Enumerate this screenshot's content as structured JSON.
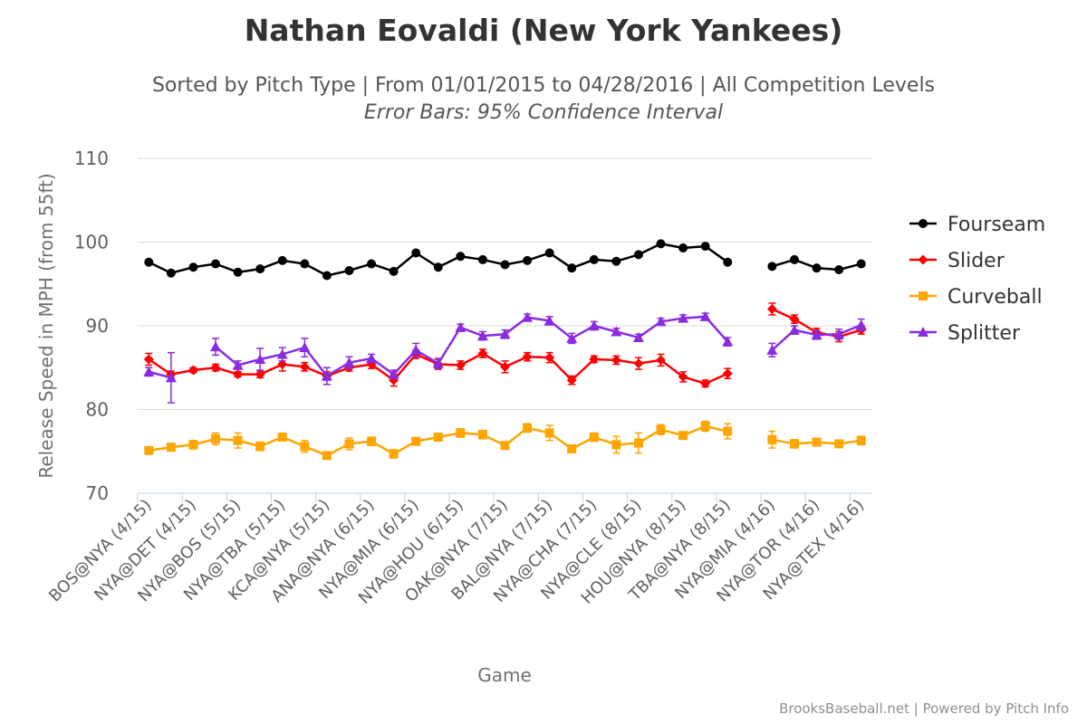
{
  "chart_data": {
    "type": "line",
    "title": "Nathan Eovaldi (New York Yankees)",
    "subtitle": "Sorted by Pitch Type | From 01/01/2015 to 04/28/2016 | All Competition Levels",
    "subtitle2": "Error Bars: 95% Confidence Interval",
    "xlabel": "Game",
    "ylabel": "Release Speed in MPH (from 55ft)",
    "ylim": [
      70,
      110
    ],
    "yticks": [
      70,
      80,
      90,
      100,
      110
    ],
    "grid": true,
    "legend_position": "right",
    "credits": "BrooksBaseball.net | Powered by Pitch Info",
    "x_tick_labels": [
      "BOS@NYA (4/15)",
      "NYA@DET (4/15)",
      "NYA@BOS (5/15)",
      "NYA@TBA (5/15)",
      "KCA@NYA (5/15)",
      "ANA@NYA (6/15)",
      "NYA@MIA (6/15)",
      "NYA@HOU (6/15)",
      "OAK@NYA (7/15)",
      "BAL@NYA (7/15)",
      "NYA@CHA (7/15)",
      "NYA@CLE (8/15)",
      "HOU@NYA (8/15)",
      "TBA@NYA (8/15)",
      "NYA@MIA (4/16)",
      "NYA@TOR (4/16)",
      "NYA@TEX (4/16)"
    ],
    "x_count": 33,
    "series": [
      {
        "name": "Fourseam",
        "color": "#000000",
        "marker": "circle",
        "values": [
          97.6,
          96.3,
          97.0,
          97.4,
          96.4,
          96.8,
          97.8,
          97.4,
          96.0,
          96.6,
          97.4,
          96.5,
          98.7,
          97.0,
          98.3,
          97.9,
          97.3,
          97.8,
          98.7,
          96.9,
          97.9,
          97.7,
          98.5,
          99.8,
          99.3,
          99.5,
          97.6,
          null,
          97.1,
          97.9,
          96.9,
          96.7,
          97.4
        ],
        "errors": []
      },
      {
        "name": "Slider",
        "color": "#ff0000",
        "marker": "diamond",
        "values": [
          86.0,
          84.2,
          84.7,
          85.0,
          84.2,
          84.2,
          85.4,
          85.1,
          84.0,
          85.0,
          85.4,
          83.5,
          86.6,
          85.4,
          85.3,
          86.7,
          85.1,
          86.3,
          86.2,
          83.5,
          86.0,
          85.9,
          85.5,
          85.9,
          83.9,
          83.1,
          84.3,
          null,
          92.0,
          90.8,
          89.2,
          88.7,
          89.5
        ],
        "errors": [
          0.7,
          0.4,
          0.3,
          0.4,
          0.3,
          0.4,
          0.8,
          0.5,
          0.5,
          0.4,
          0.5,
          0.7,
          0.5,
          0.6,
          0.5,
          0.5,
          0.7,
          0.5,
          0.6,
          0.5,
          0.4,
          0.5,
          0.7,
          0.7,
          0.6,
          0.4,
          0.6,
          0,
          0.7,
          0.5,
          0.5,
          0.6,
          0.5
        ]
      },
      {
        "name": "Curveball",
        "color": "#ffa500",
        "marker": "square",
        "values": [
          75.1,
          75.5,
          75.8,
          76.5,
          76.3,
          75.6,
          76.7,
          75.6,
          74.5,
          75.9,
          76.2,
          74.7,
          76.2,
          76.7,
          77.2,
          77.0,
          75.7,
          77.8,
          77.2,
          75.3,
          76.7,
          75.8,
          76.0,
          77.6,
          76.9,
          78.0,
          77.4,
          null,
          76.4,
          75.9,
          76.1,
          75.9,
          76.3
        ],
        "errors": [
          0.4,
          0.4,
          0.5,
          0.7,
          0.9,
          0.5,
          0.4,
          0.7,
          0.4,
          0.7,
          0.5,
          0.5,
          0.4,
          0.3,
          0.5,
          0.5,
          0.4,
          0.5,
          0.9,
          0.4,
          0.5,
          1.0,
          1.2,
          0.6,
          0.4,
          0.6,
          0.9,
          0,
          1.0,
          0.5,
          0.4,
          0.4,
          0.5
        ]
      },
      {
        "name": "Splitter",
        "color": "#8a2be2",
        "marker": "triangle",
        "values": [
          84.5,
          83.8,
          null,
          87.5,
          85.3,
          86.0,
          86.6,
          87.4,
          84.0,
          85.6,
          86.1,
          84.2,
          87.1,
          85.5,
          89.8,
          88.8,
          89.0,
          91.0,
          90.6,
          88.5,
          90.0,
          89.3,
          88.6,
          90.5,
          90.9,
          91.1,
          88.1,
          null,
          87.1,
          89.5,
          88.9,
          89.0,
          90.1
        ],
        "errors": [
          0.5,
          3.0,
          0,
          1.0,
          0.5,
          1.3,
          0.8,
          1.1,
          1.0,
          0.7,
          0.5,
          0.5,
          0.8,
          0.6,
          0.4,
          0.5,
          0.5,
          0.4,
          0.5,
          0.6,
          0.5,
          0.4,
          0.4,
          0.4,
          0.4,
          0.4,
          0.5,
          0,
          0.8,
          0.5,
          0.5,
          0.6,
          0.7
        ]
      }
    ]
  }
}
